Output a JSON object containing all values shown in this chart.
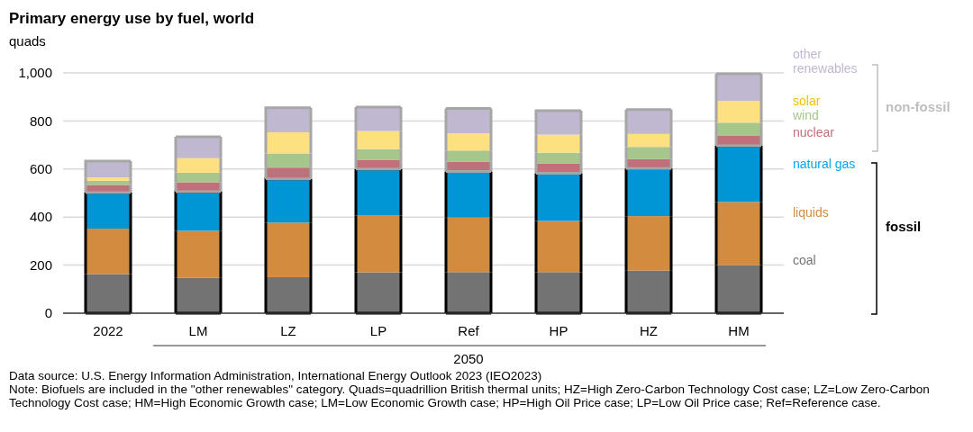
{
  "chart_data": {
    "type": "bar",
    "title": "Primary energy use by fuel, world",
    "ylabel": "quads",
    "categories": [
      "2022",
      "LM",
      "LZ",
      "LP",
      "Ref",
      "HP",
      "HZ",
      "HM"
    ],
    "stacked": true,
    "series": [
      {
        "name": "coal",
        "color": "#737373",
        "values": [
          163,
          147,
          150,
          170,
          171,
          171,
          177,
          200
        ]
      },
      {
        "name": "liquids",
        "color": "#d38b3f",
        "values": [
          189,
          196,
          227,
          236,
          227,
          213,
          227,
          263
        ]
      },
      {
        "name": "natural gas",
        "color": "#0096d6",
        "values": [
          150,
          163,
          182,
          194,
          192,
          198,
          198,
          234
        ]
      },
      {
        "name": "nuclear",
        "color": "#c0707a",
        "values": [
          32,
          39,
          47,
          37,
          41,
          40,
          39,
          41
        ]
      },
      {
        "name": "wind",
        "color": "#a6c68b",
        "values": [
          17,
          40,
          59,
          46,
          46,
          46,
          51,
          55
        ]
      },
      {
        "name": "solar",
        "color": "#fde07f",
        "values": [
          14,
          60,
          88,
          75,
          72,
          75,
          54,
          91
        ]
      },
      {
        "name": "other renewables",
        "color": "#c0b8d0",
        "values": [
          68,
          89,
          102,
          100,
          103,
          100,
          101,
          112
        ]
      }
    ],
    "ylim": [
      0,
      1000
    ],
    "yticks": [
      0,
      200,
      400,
      600,
      800,
      {
        "value": 1000,
        "label": "1,000"
      }
    ],
    "grid": "y",
    "legend": "right",
    "annotations": [
      "2050",
      "non-fossil",
      "fossil",
      "Data source: U.S. Energy Information Administration, International Energy Outlook 2023 (IEO2023)",
      "Note: Biofuels are included in the \"other renewables\" category. Quads=quadrillion British thermal units; HZ=High Zero-Carbon Technology Cost case; LZ=Low Zero-Carbon Technology Cost case; HM=High  Economic Growth case; LM=Low Economic Growth case; HP=High Oil Price case; LP=Low Oil Price case; Ref=Reference case."
    ]
  }
}
